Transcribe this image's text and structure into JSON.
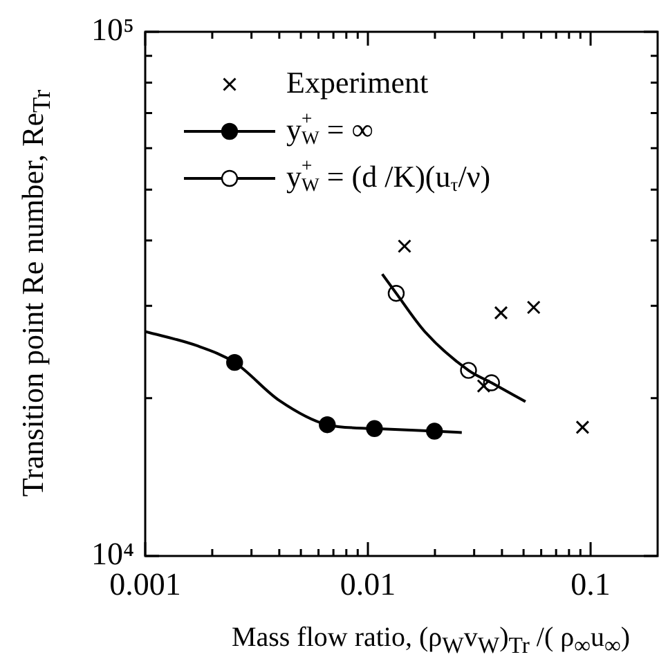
{
  "chart_data": {
    "type": "line",
    "xlabel": "Mass flow ratio, (ρ$_{W}$v$_{W}$)$_{Tr}$ /( ρ$_{∞}$u$_{∞}$)",
    "ylabel": "Transition point Re number, Re$_{Tr}$",
    "log": "xy",
    "xlim": [
      0.001,
      0.2
    ],
    "xticks": [
      0.001,
      {
        "value": 0.002,
        "label": null
      },
      {
        "value": 0.003,
        "label": null
      },
      {
        "value": 0.004,
        "label": null
      },
      {
        "value": 0.005,
        "label": null
      },
      {
        "value": 0.006,
        "label": null
      },
      {
        "value": 0.007,
        "label": null
      },
      {
        "value": 0.008,
        "label": null
      },
      {
        "value": 0.009,
        "label": null
      },
      0.01,
      {
        "value": 0.02,
        "label": null
      },
      {
        "value": 0.03,
        "label": null
      },
      {
        "value": 0.04,
        "label": null
      },
      {
        "value": 0.05,
        "label": null
      },
      {
        "value": 0.06,
        "label": null
      },
      {
        "value": 0.07,
        "label": null
      },
      {
        "value": 0.08,
        "label": null
      },
      {
        "value": 0.09,
        "label": null
      },
      0.1
    ],
    "ylim": [
      10000,
      100000
    ],
    "yticks": [
      {
        "value": 10000,
        "label": "10⁴"
      },
      {
        "value": 20000,
        "label": null
      },
      {
        "value": 30000,
        "label": null
      },
      {
        "value": 40000,
        "label": null
      },
      {
        "value": 50000,
        "label": null
      },
      {
        "value": 60000,
        "label": null
      },
      {
        "value": 70000,
        "label": null
      },
      {
        "value": 80000,
        "label": null
      },
      {
        "value": 90000,
        "label": null
      },
      {
        "value": 100000,
        "label": "10⁵"
      }
    ],
    "grid": false,
    "legend": "top left",
    "series": [
      {
        "name": "Experiment",
        "type": "scatter",
        "marker": "cross",
        "color": "#000000",
        "x": [
          0.0146,
          0.0331,
          0.0396,
          0.0555,
          0.092
        ],
        "values": [
          39000,
          21100,
          29100,
          29800,
          17600
        ]
      },
      {
        "marker": "none",
        "color": "#000000",
        "x": [
          0.001,
          0.0017,
          0.00252,
          0.004,
          0.00657,
          0.0107,
          0.0199,
          0.0264
        ],
        "values": [
          26800,
          25200,
          23400,
          19800,
          17800,
          17500,
          17300,
          17200
        ]
      },
      {
        "name": "y$_{W}$$^{+}$ = ∞",
        "type": "scatter",
        "marker": "circle",
        "color": "#000000",
        "x": [
          0.00252,
          0.00657,
          0.0107,
          0.0199
        ],
        "values": [
          23400,
          17800,
          17500,
          17300
        ]
      },
      {
        "marker": "none",
        "color": "#000000",
        "x": [
          0.0116,
          0.0134,
          0.018,
          0.0283,
          0.0359,
          0.051
        ],
        "values": [
          34500,
          31700,
          26800,
          22600,
          21400,
          19700
        ]
      },
      {
        "name": "y$_{W}$$^{+}$ = (d /K)(u$_{τ}$/ν)",
        "type": "scatter",
        "marker": "circle",
        "color": "#ffffff",
        "x": [
          0.0134,
          0.0283,
          0.0359
        ],
        "values": [
          31700,
          22600,
          21400
        ]
      }
    ]
  }
}
